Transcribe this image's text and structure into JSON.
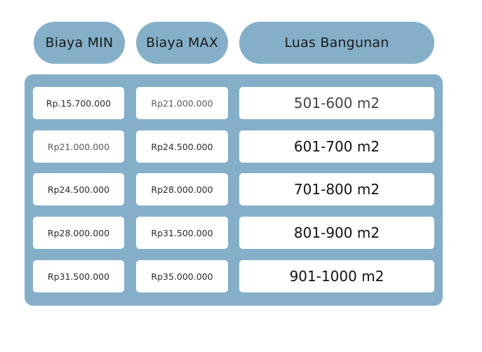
{
  "headers": {
    "min": "Biaya MIN",
    "max": "Biaya MAX",
    "luas": "Luas Bangunan"
  },
  "rows": [
    {
      "min": "Rp.15.700.000",
      "max": "Rp21.000.000",
      "luas": "501-600 m2"
    },
    {
      "min": "Rp21.000.000",
      "max": "Rp24.500.000",
      "luas": "601-700 m2"
    },
    {
      "min": "Rp24.500.000",
      "max": "Rp28.000.000",
      "luas": "701-800 m2"
    },
    {
      "min": "Rp28.000.000",
      "max": "Rp31.500.000",
      "luas": "801-900 m2"
    },
    {
      "min": "Rp31.500.000",
      "max": "Rp35.000.000",
      "luas": "901-1000 m2"
    }
  ],
  "colors": {
    "accent": "#85afc9",
    "cell_bg": "#ffffff",
    "text": "#1a1a1a"
  }
}
